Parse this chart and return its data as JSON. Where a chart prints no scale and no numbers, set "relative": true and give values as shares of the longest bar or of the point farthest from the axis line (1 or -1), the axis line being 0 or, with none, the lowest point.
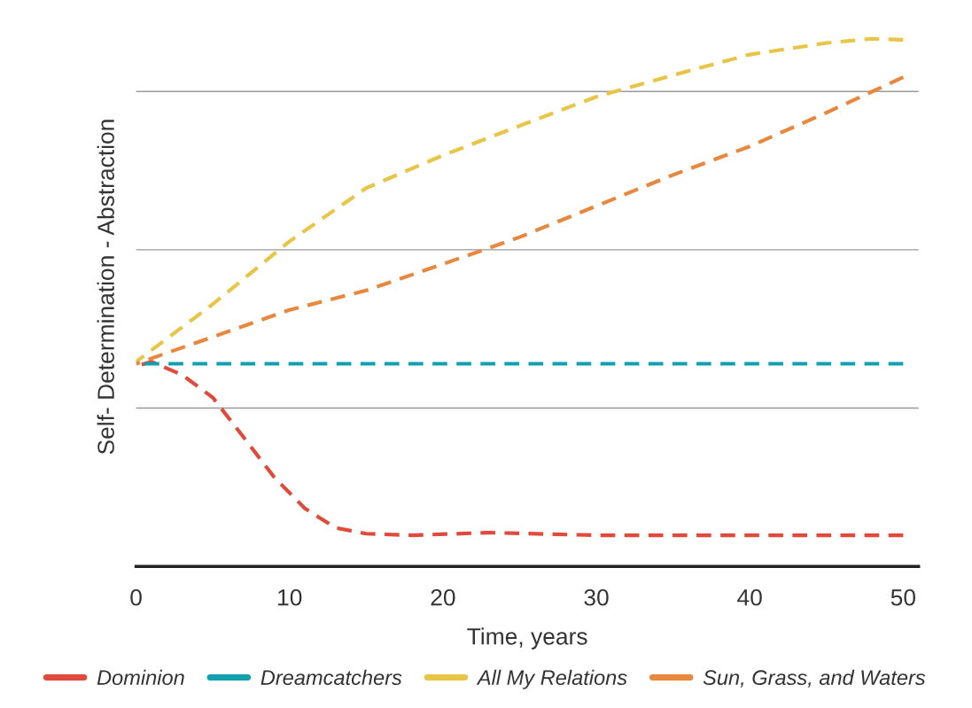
{
  "chart_data": {
    "type": "line",
    "relative": true,
    "xlabel": "Time, years",
    "ylabel": "Self- Determination - Abstraction",
    "xlim": [
      0,
      51
    ],
    "xticks": [
      0,
      10,
      20,
      30,
      40,
      50
    ],
    "grid": "y",
    "legend": "bottom",
    "line_style": "dashed",
    "marker": "none",
    "series": [
      {
        "name": "Dominion",
        "color": "#e04a3c",
        "x": [
          0,
          1,
          3,
          5,
          7,
          9,
          11,
          13,
          15,
          18,
          23,
          30,
          50
        ],
        "values": [
          0.379,
          0.388,
          0.363,
          0.32,
          0.245,
          0.169,
          0.11,
          0.073,
          0.062,
          0.059,
          0.064,
          0.059,
          0.059
        ]
      },
      {
        "name": "Dreamcatchers",
        "color": "#12a0b0",
        "x": [
          0,
          50
        ],
        "values": [
          0.384,
          0.384
        ]
      },
      {
        "name": "All My Relations",
        "color": "#e8c547",
        "x": [
          0,
          5,
          10,
          15,
          20,
          25,
          30,
          35,
          40,
          45,
          48,
          50
        ],
        "values": [
          0.388,
          0.497,
          0.616,
          0.717,
          0.779,
          0.835,
          0.89,
          0.931,
          0.97,
          0.992,
          1.0,
          0.998
        ]
      },
      {
        "name": "Sun, Grass, and Waters",
        "color": "#e8873e",
        "x": [
          0,
          5,
          10,
          15,
          20,
          25,
          30,
          35,
          40,
          45,
          50
        ],
        "values": [
          0.384,
          0.435,
          0.486,
          0.523,
          0.573,
          0.624,
          0.683,
          0.742,
          0.796,
          0.86,
          0.927
        ]
      }
    ]
  }
}
